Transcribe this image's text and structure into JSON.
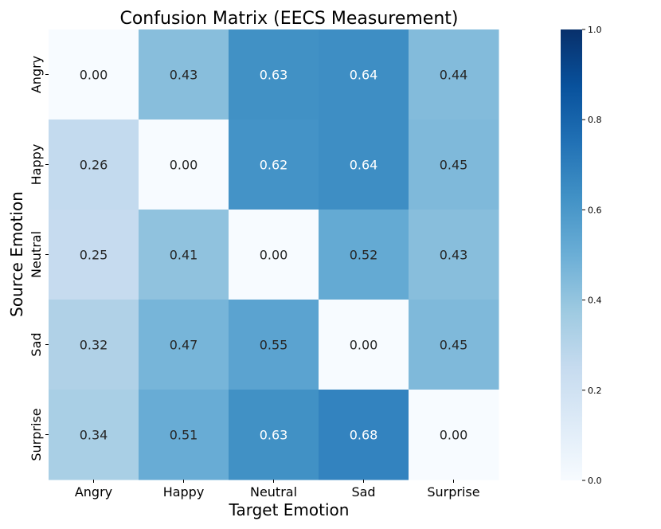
{
  "chart_data": {
    "type": "heatmap",
    "title": "Confusion Matrix (EECS Measurement)",
    "xlabel": "Target Emotion",
    "ylabel": "Source Emotion",
    "x_categories": [
      "Angry",
      "Happy",
      "Neutral",
      "Sad",
      "Surprise"
    ],
    "y_categories": [
      "Angry",
      "Happy",
      "Neutral",
      "Sad",
      "Surprise"
    ],
    "values": [
      [
        0.0,
        0.43,
        0.63,
        0.64,
        0.44
      ],
      [
        0.26,
        0.0,
        0.62,
        0.64,
        0.45
      ],
      [
        0.25,
        0.41,
        0.0,
        0.52,
        0.43
      ],
      [
        0.32,
        0.47,
        0.55,
        0.0,
        0.45
      ],
      [
        0.34,
        0.51,
        0.63,
        0.68,
        0.0
      ]
    ],
    "value_labels": [
      [
        "0.00",
        "0.43",
        "0.63",
        "0.64",
        "0.44"
      ],
      [
        "0.26",
        "0.00",
        "0.62",
        "0.64",
        "0.45"
      ],
      [
        "0.25",
        "0.41",
        "0.00",
        "0.52",
        "0.43"
      ],
      [
        "0.32",
        "0.47",
        "0.55",
        "0.00",
        "0.45"
      ],
      [
        "0.34",
        "0.51",
        "0.63",
        "0.68",
        "0.00"
      ]
    ],
    "colormap": "Blues",
    "colorbar": {
      "range": [
        0.0,
        1.0
      ],
      "ticks": [
        0.0,
        0.2,
        0.4,
        0.6,
        0.8,
        1.0
      ],
      "tick_labels": [
        "0.0",
        "0.2",
        "0.4",
        "0.6",
        "0.8",
        "1.0"
      ]
    }
  }
}
